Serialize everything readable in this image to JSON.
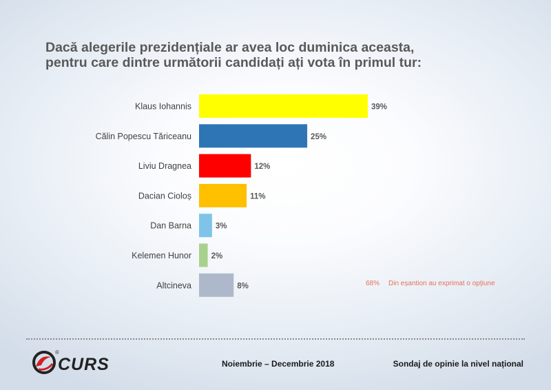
{
  "title": {
    "line1": "Dacă alegerile prezidențiale ar avea loc duminica aceasta,",
    "line2": "pentru care dintre următorii candidați ați vota în primul tur:"
  },
  "chart_data": {
    "type": "bar",
    "orientation": "horizontal",
    "categories": [
      "Klaus Iohannis",
      "Călin Popescu Tăriceanu",
      "Liviu Dragnea",
      "Dacian Cioloș",
      "Dan Barna",
      "Kelemen Hunor",
      "Altcineva"
    ],
    "values": [
      39,
      25,
      12,
      11,
      3,
      2,
      8
    ],
    "value_labels": [
      "39%",
      "25%",
      "12%",
      "11%",
      "3%",
      "2%",
      "8%"
    ],
    "colors": [
      "#ffff00",
      "#2e75b6",
      "#ff0000",
      "#ffc000",
      "#7fc4e8",
      "#a9d18e",
      "#adb9ca"
    ],
    "xlim": [
      0,
      39
    ],
    "grid": false,
    "legend": "none",
    "title": "",
    "xlabel": "",
    "ylabel": ""
  },
  "note": {
    "pct": "68%",
    "text": "Din eșantion au exprimat o opțiune"
  },
  "footer": {
    "brand": "CURS",
    "reg_mark": "®",
    "date": "Noiembrie – Decembrie 2018",
    "survey": "Sondaj de opinie la nivel național"
  },
  "brand_colors": {
    "logo_red": "#d21f26",
    "logo_dark": "#222222"
  }
}
